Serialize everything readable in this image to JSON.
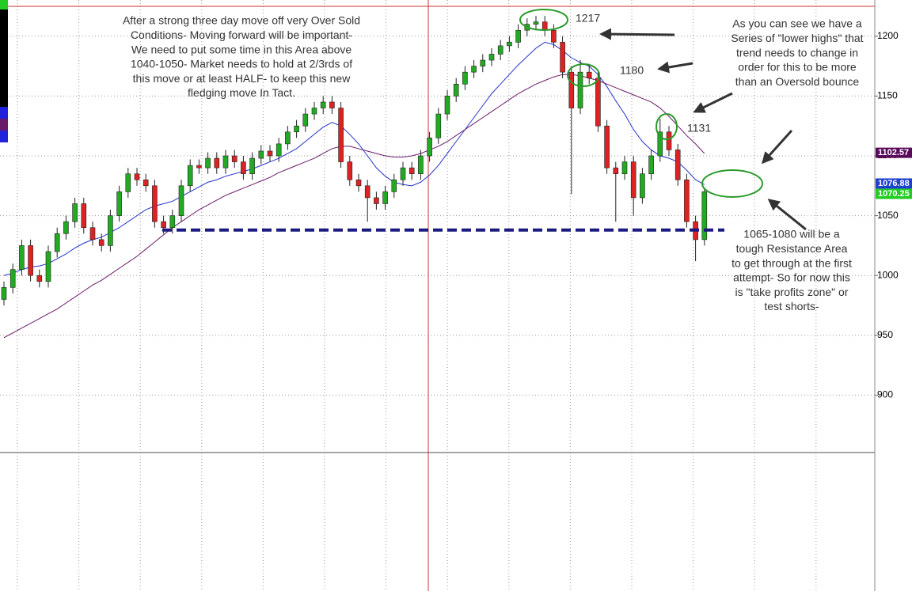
{
  "chart_data": {
    "type": "candlestick",
    "open": [
      980,
      990,
      1005,
      1025,
      1000,
      995,
      1020,
      1035,
      1045,
      1060,
      1040,
      1030,
      1025,
      1050,
      1070,
      1085,
      1080,
      1075,
      1045,
      1040,
      1050,
      1075,
      1092,
      1090,
      1098,
      1090,
      1100,
      1095,
      1085,
      1098,
      1104,
      1100,
      1110,
      1120,
      1125,
      1135,
      1140,
      1145,
      1140,
      1095,
      1080,
      1075,
      1065,
      1060,
      1070,
      1080,
      1090,
      1085,
      1100,
      1115,
      1135,
      1150,
      1160,
      1170,
      1175,
      1180,
      1185,
      1192,
      1195,
      1205,
      1210,
      1212,
      1205,
      1195,
      1170,
      1140,
      1170,
      1165,
      1125,
      1090,
      1085,
      1095,
      1065,
      1085,
      1100,
      1120,
      1105,
      1080,
      1045,
      1030
    ],
    "high": [
      995,
      1010,
      1030,
      1030,
      1005,
      1025,
      1040,
      1050,
      1065,
      1065,
      1045,
      1035,
      1055,
      1075,
      1090,
      1090,
      1085,
      1080,
      1050,
      1055,
      1080,
      1097,
      1097,
      1103,
      1103,
      1105,
      1105,
      1100,
      1103,
      1109,
      1109,
      1115,
      1125,
      1130,
      1140,
      1145,
      1150,
      1150,
      1145,
      1100,
      1085,
      1080,
      1070,
      1075,
      1085,
      1095,
      1095,
      1105,
      1120,
      1140,
      1155,
      1165,
      1175,
      1180,
      1185,
      1190,
      1197,
      1200,
      1210,
      1215,
      1217,
      1217,
      1210,
      1200,
      1175,
      1180,
      1177,
      1170,
      1130,
      1095,
      1100,
      1100,
      1090,
      1105,
      1131,
      1125,
      1110,
      1085,
      1050,
      1073
    ],
    "low": [
      975,
      985,
      1000,
      995,
      990,
      990,
      1015,
      1030,
      1040,
      1035,
      1025,
      1020,
      1020,
      1045,
      1065,
      1075,
      1070,
      1040,
      1035,
      1035,
      1045,
      1070,
      1085,
      1085,
      1085,
      1085,
      1090,
      1080,
      1080,
      1093,
      1095,
      1095,
      1105,
      1115,
      1120,
      1130,
      1135,
      1135,
      1090,
      1075,
      1070,
      1045,
      1055,
      1055,
      1065,
      1075,
      1080,
      1080,
      1095,
      1110,
      1130,
      1145,
      1155,
      1165,
      1170,
      1175,
      1180,
      1187,
      1190,
      1200,
      1205,
      1200,
      1190,
      1165,
      1068,
      1135,
      1160,
      1120,
      1085,
      1045,
      1080,
      1050,
      1060,
      1080,
      1095,
      1100,
      1075,
      1040,
      1012,
      1025
    ],
    "close": [
      990,
      1005,
      1025,
      1000,
      995,
      1020,
      1035,
      1045,
      1060,
      1040,
      1030,
      1025,
      1050,
      1070,
      1085,
      1080,
      1075,
      1045,
      1040,
      1050,
      1075,
      1092,
      1090,
      1098,
      1090,
      1100,
      1095,
      1085,
      1098,
      1104,
      1100,
      1110,
      1120,
      1125,
      1135,
      1140,
      1145,
      1140,
      1095,
      1080,
      1075,
      1065,
      1060,
      1070,
      1080,
      1090,
      1085,
      1100,
      1115,
      1135,
      1150,
      1160,
      1170,
      1175,
      1180,
      1185,
      1192,
      1195,
      1205,
      1210,
      1212,
      1205,
      1195,
      1170,
      1140,
      1170,
      1165,
      1125,
      1090,
      1085,
      1095,
      1065,
      1085,
      1100,
      1120,
      1105,
      1080,
      1045,
      1030,
      1070
    ],
    "color_up": "#22aa22",
    "color_down": "#dd2222",
    "lines": [
      {
        "color": "#2233cc",
        "values": [
          1000,
          1002,
          1005,
          1007,
          1008,
          1010,
          1014,
          1018,
          1023,
          1027,
          1030,
          1032,
          1036,
          1040,
          1045,
          1050,
          1055,
          1058,
          1060,
          1062,
          1066,
          1070,
          1074,
          1078,
          1080,
          1083,
          1085,
          1087,
          1089,
          1092,
          1095,
          1098,
          1102,
          1106,
          1112,
          1118,
          1124,
          1128,
          1125,
          1118,
          1110,
          1100,
          1090,
          1083,
          1078,
          1076,
          1075,
          1078,
          1084,
          1092,
          1102,
          1112,
          1122,
          1132,
          1142,
          1152,
          1160,
          1168,
          1176,
          1183,
          1190,
          1195,
          1193,
          1188,
          1182,
          1178,
          1175,
          1168,
          1158,
          1146,
          1135,
          1122,
          1112,
          1105,
          1100,
          1098,
          1095,
          1088,
          1080,
          1076
        ]
      },
      {
        "color": "#6a1b6a",
        "values": [
          948,
          952,
          956,
          960,
          964,
          968,
          972,
          977,
          982,
          987,
          992,
          996,
          1001,
          1006,
          1011,
          1016,
          1022,
          1028,
          1034,
          1040,
          1045,
          1050,
          1055,
          1059,
          1063,
          1067,
          1070,
          1073,
          1076,
          1079,
          1082,
          1086,
          1089,
          1092,
          1095,
          1098,
          1102,
          1106,
          1108,
          1108,
          1106,
          1104,
          1102,
          1100,
          1099,
          1099,
          1100,
          1102,
          1105,
          1108,
          1112,
          1117,
          1122,
          1127,
          1132,
          1137,
          1142,
          1147,
          1152,
          1156,
          1160,
          1163,
          1166,
          1168,
          1168,
          1167,
          1165,
          1163,
          1160,
          1157,
          1154,
          1151,
          1148,
          1145,
          1140,
          1133,
          1125,
          1117,
          1110,
          1102
        ]
      }
    ],
    "price_labels": [
      {
        "value": 1102.57,
        "color": "#5a0a5a"
      },
      {
        "value": 1076.88,
        "color": "#1f3fd0"
      },
      {
        "value": 1070.25,
        "color": "#22cc22"
      }
    ],
    "support_level": 1038,
    "ylim": [
      852,
      1225
    ],
    "yticks": [
      900,
      950,
      1000,
      1050,
      1100,
      1150,
      1200
    ],
    "grid": true,
    "annotations": [
      {
        "lines": [
          "After a strong three day move off very Over Sold",
          "Conditions-  Moving forward will be important-",
          "We need to put some time in this Area above",
          "1040-1050- Market needs to hold at 2/3rds of",
          "this move or at least HALF- to keep this new",
          "fledging move In Tact."
        ]
      },
      {
        "lines": [
          "As you can see we have a",
          "Series of \"lower highs\" that",
          "trend needs to change in",
          "order for this to be more",
          "than an Oversold bounce"
        ]
      },
      {
        "lines": [
          "1065-1080 will be a",
          "tough Resistance Area",
          "to get through at the first",
          "attempt-  So for now this",
          "is \"take profits zone\" or",
          "test shorts-"
        ]
      }
    ],
    "peak_labels": [
      "1217",
      "1180",
      "1131"
    ]
  }
}
